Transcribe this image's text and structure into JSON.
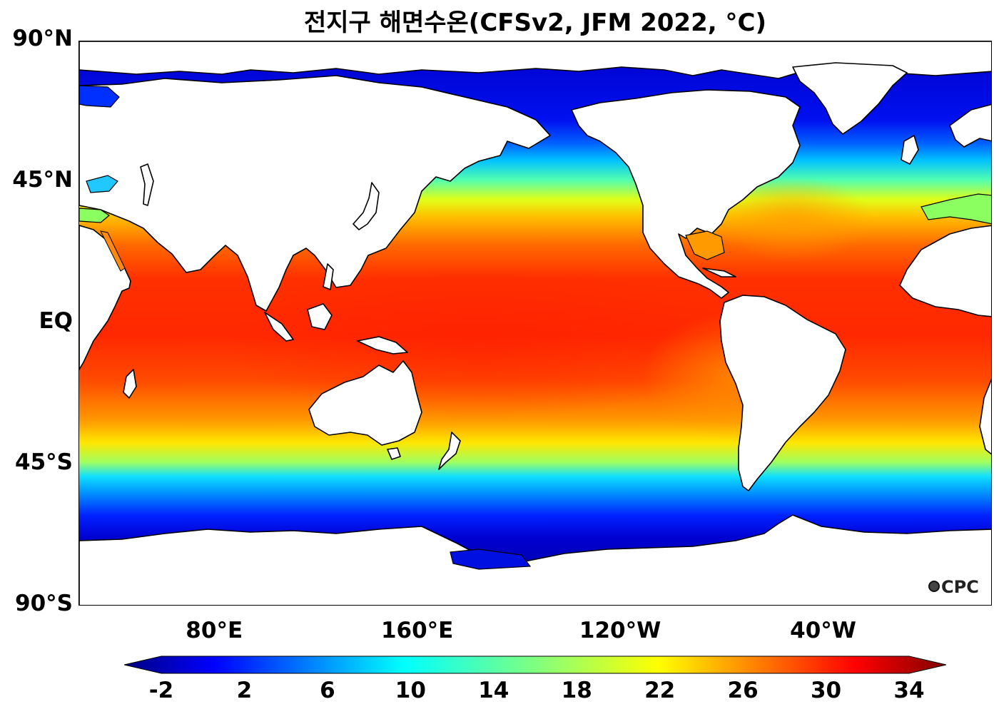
{
  "title": "전지구 해면수온(CFSv2, JFM 2022, °C)",
  "map": {
    "projection": "equirectangular",
    "lat_axis_labels": [
      {
        "label": "90°N",
        "lat": 90
      },
      {
        "label": "45°N",
        "lat": 45
      },
      {
        "label": "EQ",
        "lat": 0
      },
      {
        "label": "45°S",
        "lat": -45
      },
      {
        "label": "90°S",
        "lat": -90
      }
    ],
    "lon_axis_labels": [
      {
        "label": "80°E",
        "lon": 80
      },
      {
        "label": "160°E",
        "lon": 160
      },
      {
        "label": "120°W",
        "lon": 240
      },
      {
        "label": "40°W",
        "lon": 320
      }
    ],
    "logo_text": "CPC",
    "land_color": "#ffffff",
    "coastline_color": "#000000"
  },
  "colorbar": {
    "colormap": "jet",
    "min": -2,
    "max": 34,
    "extend": "both",
    "tick_labels": [
      "-2",
      "2",
      "6",
      "10",
      "14",
      "18",
      "22",
      "26",
      "30",
      "34"
    ],
    "tick_values": [
      -2,
      2,
      6,
      10,
      14,
      18,
      22,
      26,
      30,
      34
    ]
  }
}
